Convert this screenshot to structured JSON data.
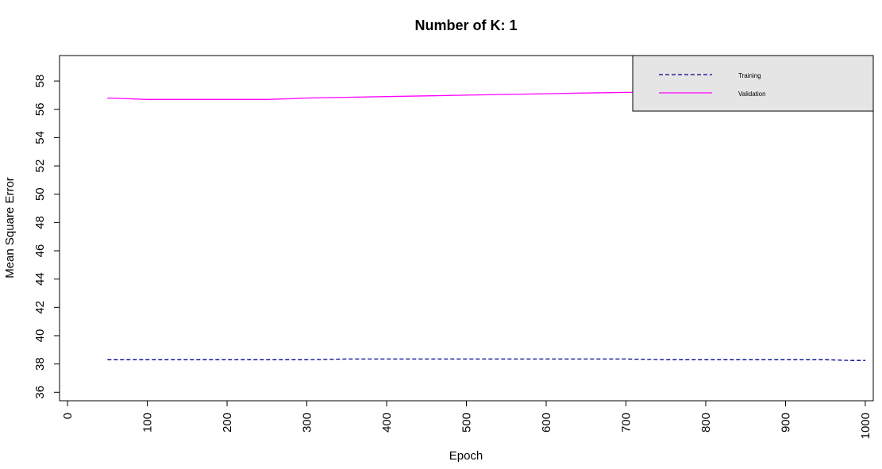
{
  "chart_data": {
    "type": "line",
    "title": "Number of K: 1",
    "xlabel": "Epoch",
    "ylabel": "Mean Square Error",
    "xlim": [
      -10,
      1010
    ],
    "ylim": [
      35.4,
      59.8
    ],
    "x_ticks": [
      0,
      100,
      200,
      300,
      400,
      500,
      600,
      700,
      800,
      900,
      1000
    ],
    "y_ticks": [
      36,
      38,
      40,
      42,
      44,
      46,
      48,
      50,
      52,
      54,
      56,
      58
    ],
    "grid": false,
    "legend_position": "top-right",
    "legend_background": "#e5e5e5",
    "series": [
      {
        "name": "Training",
        "color": "#00008b",
        "line_style": "dashed",
        "x": [
          50,
          100,
          150,
          200,
          250,
          270,
          300,
          350,
          400,
          450,
          500,
          550,
          600,
          650,
          700,
          750,
          800,
          850,
          900,
          950,
          980,
          1000
        ],
        "y": [
          38.3,
          38.3,
          38.3,
          38.3,
          38.3,
          38.3,
          38.3,
          38.35,
          38.35,
          38.35,
          38.35,
          38.35,
          38.35,
          38.35,
          38.35,
          38.3,
          38.3,
          38.3,
          38.3,
          38.3,
          38.25,
          38.25
        ]
      },
      {
        "name": "Validation",
        "color": "#ff00ff",
        "line_style": "solid",
        "x": [
          50,
          75,
          100,
          150,
          200,
          250,
          280,
          300,
          350,
          400,
          450,
          500,
          550,
          600,
          650,
          700,
          720
        ],
        "y": [
          56.8,
          56.75,
          56.7,
          56.7,
          56.7,
          56.7,
          56.75,
          56.8,
          56.85,
          56.9,
          56.95,
          57.0,
          57.05,
          57.1,
          57.15,
          57.2,
          57.2
        ]
      }
    ]
  }
}
